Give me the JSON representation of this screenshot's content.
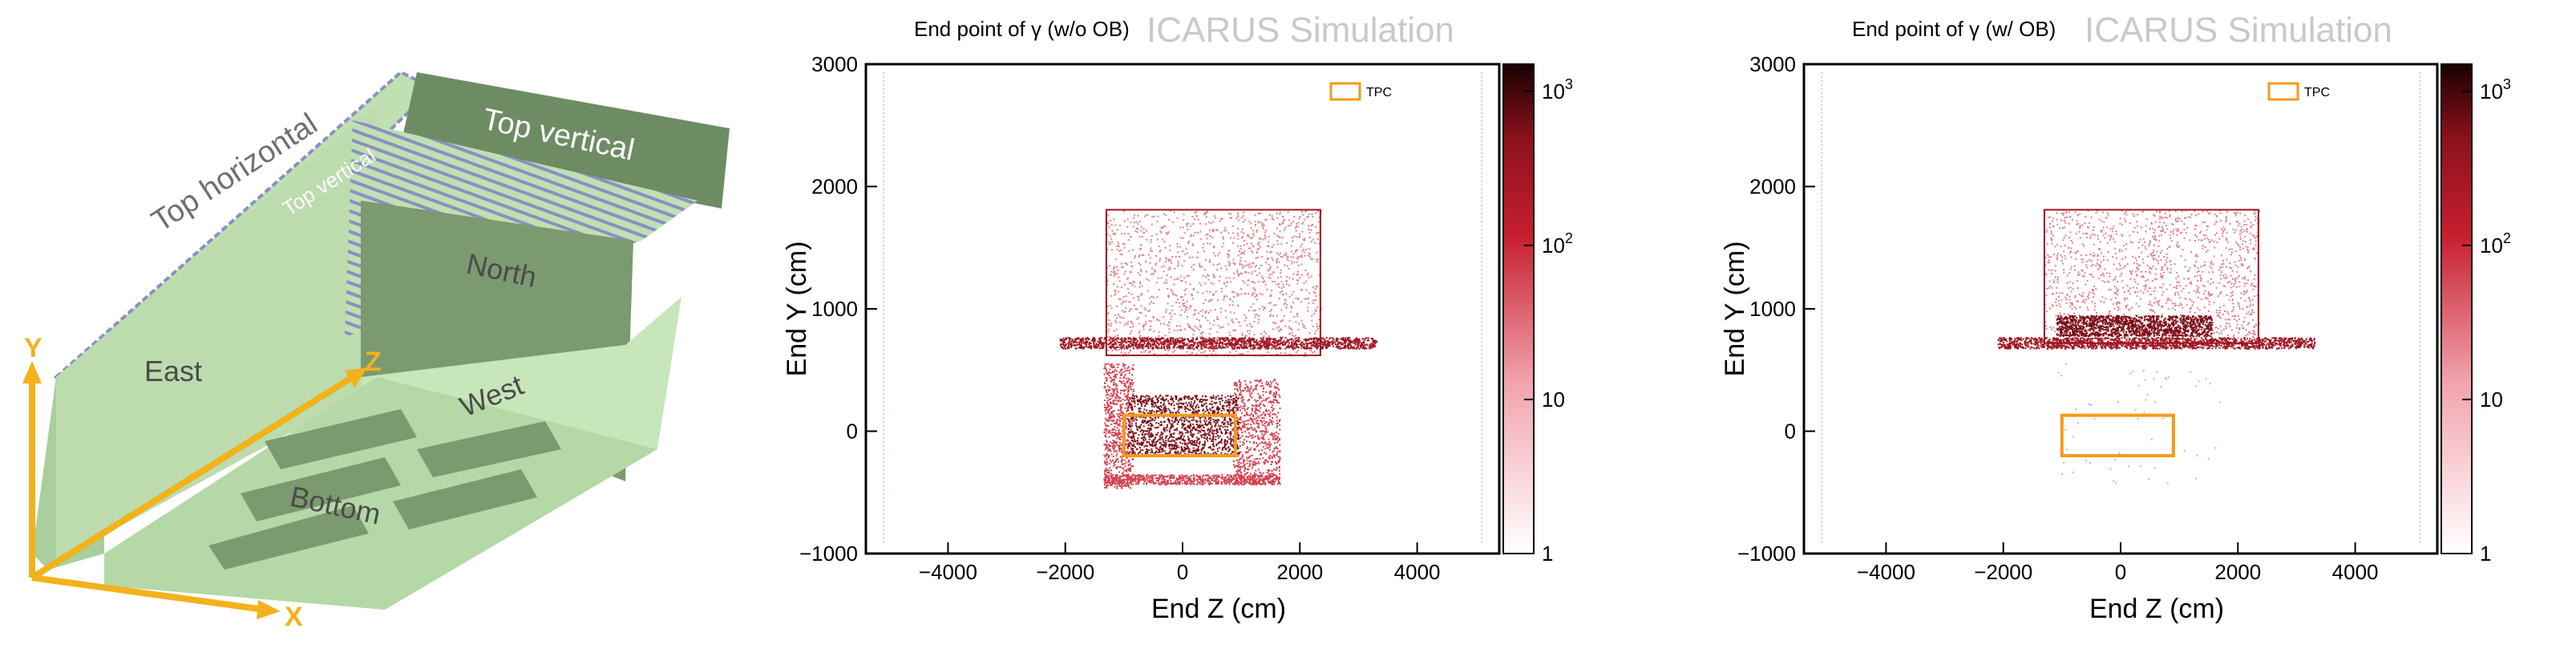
{
  "detector": {
    "labels": {
      "top_horizontal": "Top horizontal",
      "top_vertical_small": "Top vertical",
      "top_vertical": "Top vertical",
      "north": "North",
      "east": "East",
      "west": "West",
      "bottom": "Bottom"
    },
    "axes": {
      "x": "X",
      "y": "Y",
      "z": "Z"
    },
    "colors": {
      "face": "#bfe0b0",
      "dark": "#6e8c64",
      "stripe": "#8a8fc6",
      "axis": "#f2b21c"
    }
  },
  "chart_data": [
    {
      "type": "heatmap",
      "title": "End point of γ (w/o OB)",
      "watermark": "ICARUS Simulation",
      "xlabel": "End Z (cm)",
      "ylabel": "End Y (cm)",
      "xlim": [
        -5400,
        5400
      ],
      "ylim": [
        -1000,
        3000
      ],
      "xticks": [
        "−4000",
        "−2000",
        "0",
        "2000",
        "4000"
      ],
      "xtick_values": [
        -4000,
        -2000,
        0,
        2000,
        4000
      ],
      "yticks": [
        "−1000",
        "0",
        "1000",
        "2000",
        "3000"
      ],
      "ytick_values": [
        -1000,
        0,
        1000,
        2000,
        3000
      ],
      "colorbar": {
        "scale": "log",
        "range": [
          1,
          1500
        ],
        "ticks": [
          "1",
          "10",
          "10^2",
          "10^3"
        ],
        "tick_values": [
          1,
          10,
          100,
          1000
        ]
      },
      "legend": {
        "entries": [
          "TPC"
        ],
        "position": "top-right"
      },
      "tpc_box": {
        "z": [
          -1000,
          900
        ],
        "y": [
          -200,
          130
        ]
      },
      "regions": [
        {
          "name": "building-outline",
          "z": [
            -1300,
            2350
          ],
          "y": [
            620,
            1810
          ],
          "density": "low"
        },
        {
          "name": "floor-band",
          "z": [
            -2100,
            3300
          ],
          "y": [
            680,
            770
          ],
          "density": "high"
        },
        {
          "name": "pit-left",
          "z": [
            -1350,
            -850
          ],
          "y": [
            -460,
            560
          ],
          "density": "medium"
        },
        {
          "name": "pit-right",
          "z": [
            850,
            1650
          ],
          "y": [
            -430,
            430
          ],
          "density": "medium"
        },
        {
          "name": "cryostat",
          "z": [
            -950,
            950
          ],
          "y": [
            -200,
            300
          ],
          "density": "very-high"
        },
        {
          "name": "pit-floor",
          "z": [
            -1350,
            1650
          ],
          "y": [
            -430,
            -350
          ],
          "density": "medium"
        }
      ]
    },
    {
      "type": "heatmap",
      "title": "End point of γ  (w/ OB)",
      "watermark": "ICARUS Simulation",
      "xlabel": "End Z (cm)",
      "ylabel": "End Y (cm)",
      "xlim": [
        -5400,
        5400
      ],
      "ylim": [
        -1000,
        3000
      ],
      "xticks": [
        "−4000",
        "−2000",
        "0",
        "2000",
        "4000"
      ],
      "xtick_values": [
        -4000,
        -2000,
        0,
        2000,
        4000
      ],
      "yticks": [
        "−1000",
        "0",
        "1000",
        "2000",
        "3000"
      ],
      "ytick_values": [
        -1000,
        0,
        1000,
        2000,
        3000
      ],
      "colorbar": {
        "scale": "log",
        "range": [
          1,
          1500
        ],
        "ticks": [
          "1",
          "10",
          "10^2",
          "10^3"
        ],
        "tick_values": [
          1,
          10,
          100,
          1000
        ]
      },
      "legend": {
        "entries": [
          "TPC"
        ],
        "position": "top-right"
      },
      "tpc_box": {
        "z": [
          -1000,
          900
        ],
        "y": [
          -200,
          130
        ]
      },
      "regions": [
        {
          "name": "building-outline",
          "z": [
            -1300,
            2350
          ],
          "y": [
            720,
            1810
          ],
          "density": "low"
        },
        {
          "name": "floor-band",
          "z": [
            -2100,
            3300
          ],
          "y": [
            680,
            770
          ],
          "density": "high"
        },
        {
          "name": "overburden-slab",
          "z": [
            -1100,
            1550
          ],
          "y": [
            780,
            950
          ],
          "density": "very-high"
        },
        {
          "name": "pit-sparse",
          "z": [
            -1100,
            1700
          ],
          "y": [
            -420,
            560
          ],
          "density": "very-low"
        }
      ]
    }
  ]
}
